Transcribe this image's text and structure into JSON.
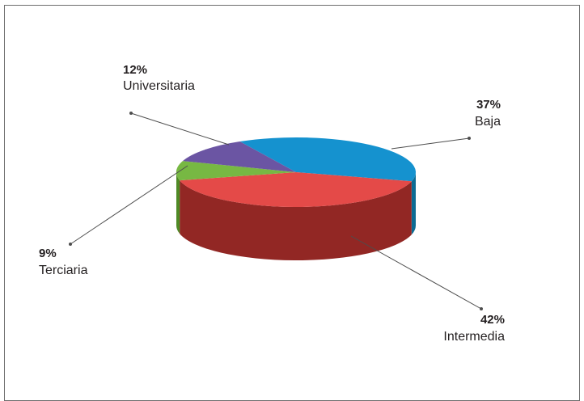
{
  "chart_data": {
    "type": "pie",
    "style": "3d",
    "categories": [
      "Baja",
      "Intermedia",
      "Terciaria",
      "Universitaria"
    ],
    "values": [
      37,
      42,
      9,
      12
    ],
    "labels": [
      "37%",
      "42%",
      "9%",
      "12%"
    ],
    "colors": {
      "Baja": {
        "top": "#1592cf",
        "side": "#0c6b93"
      },
      "Intermedia": {
        "top": "#e44a48",
        "side": "#922724"
      },
      "Terciaria": {
        "top": "#77b843",
        "side": "#4f8a26"
      },
      "Universitaria": {
        "top": "#6b55a3",
        "side": "#4a3a7a"
      }
    },
    "leader_line_color": "#4d4d4d"
  }
}
